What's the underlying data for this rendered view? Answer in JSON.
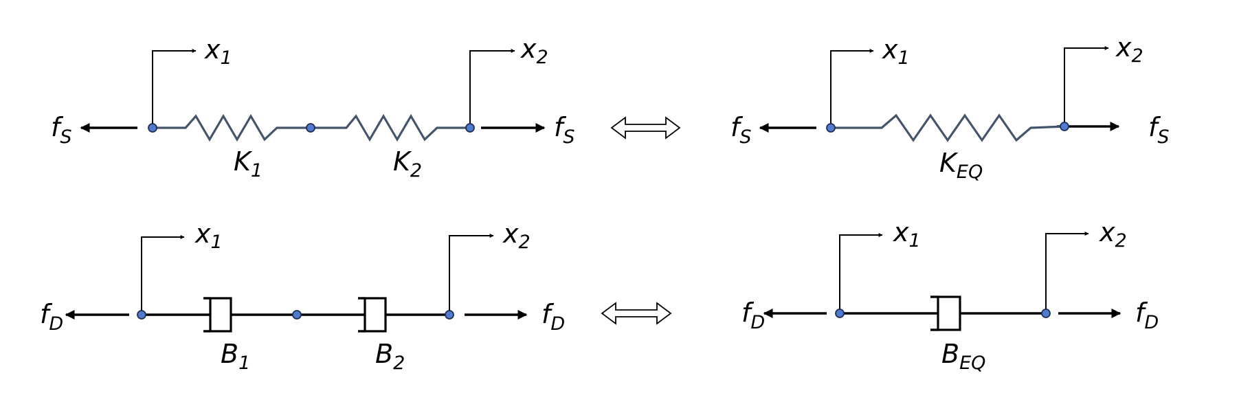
{
  "springs_series": {
    "displacement_1": {
      "base": "x",
      "sub": "1"
    },
    "displacement_2": {
      "base": "x",
      "sub": "2"
    },
    "force_left": {
      "base": "f",
      "sub": "S"
    },
    "force_right": {
      "base": "f",
      "sub": "S"
    },
    "spring_1": {
      "base": "K",
      "sub": "1"
    },
    "spring_2": {
      "base": "K",
      "sub": "2"
    }
  },
  "springs_equivalent": {
    "displacement_1": {
      "base": "x",
      "sub": "1"
    },
    "displacement_2": {
      "base": "x",
      "sub": "2"
    },
    "force_left": {
      "base": "f",
      "sub": "S"
    },
    "force_right": {
      "base": "f",
      "sub": "S"
    },
    "spring_eq": {
      "base": "K",
      "sub": "EQ"
    }
  },
  "dampers_series": {
    "displacement_1": {
      "base": "x",
      "sub": "1"
    },
    "displacement_2": {
      "base": "x",
      "sub": "2"
    },
    "force_left": {
      "base": "f",
      "sub": "D"
    },
    "force_right": {
      "base": "f",
      "sub": "D"
    },
    "damper_1": {
      "base": "B",
      "sub": "1"
    },
    "damper_2": {
      "base": "B",
      "sub": "2"
    }
  },
  "dampers_equivalent": {
    "displacement_1": {
      "base": "x",
      "sub": "1"
    },
    "displacement_2": {
      "base": "x",
      "sub": "2"
    },
    "force_left": {
      "base": "f",
      "sub": "D"
    },
    "force_right": {
      "base": "f",
      "sub": "D"
    },
    "damper_eq": {
      "base": "B",
      "sub": "EQ"
    }
  },
  "colors": {
    "spring": "#44546a",
    "node": "#4f7bd0",
    "line": "#000000"
  }
}
